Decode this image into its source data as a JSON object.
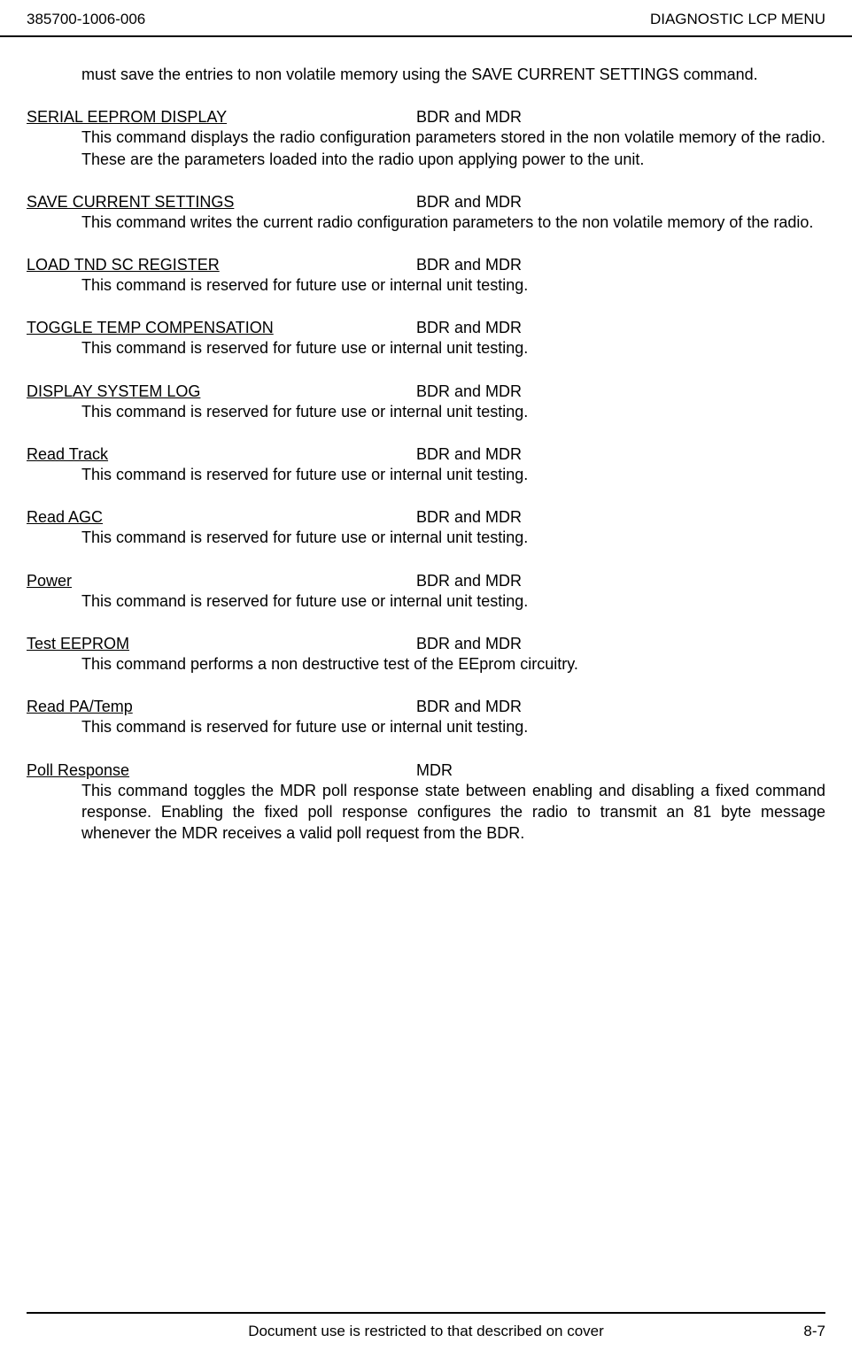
{
  "header": {
    "doc_number": "385700-1006-006",
    "doc_title": "DIAGNOSTIC LCP MENU"
  },
  "intro_text": "must save the entries to non volatile memory using the SAVE CURRENT SETTINGS command.",
  "sections": [
    {
      "title": "SERIAL EEPROM DISPLAY",
      "applies": "BDR and MDR",
      "body": "This command displays the radio configuration parameters stored in the non volatile memory of the radio.  These are the parameters loaded into the radio upon applying power to the unit."
    },
    {
      "title": "SAVE CURRENT SETTINGS",
      "applies": "BDR and MDR",
      "body": "This command writes the current radio configuration parameters to the non volatile memory of the radio."
    },
    {
      "title": "LOAD TND SC REGISTER",
      "applies": "BDR and MDR",
      "body": "This command is reserved for future use or internal unit testing."
    },
    {
      "title": "TOGGLE TEMP COMPENSATION",
      "applies": "BDR and MDR",
      "body": "This command is reserved for future use or internal unit testing."
    },
    {
      "title": "DISPLAY SYSTEM LOG",
      "applies": "BDR and MDR",
      "body": "This command is reserved for future use or internal unit testing."
    },
    {
      "title": "Read Track",
      "applies": "BDR and MDR",
      "body": "This command is reserved for future use or internal unit testing."
    },
    {
      "title": "Read AGC",
      "applies": "BDR and MDR",
      "body": "This command is reserved for future use or internal unit testing."
    },
    {
      "title": "Power",
      "applies": "BDR and MDR",
      "body": "This command is reserved for future use or internal unit testing."
    },
    {
      "title": "Test EEPROM",
      "applies": "BDR and MDR",
      "body": "This command performs a non destructive test of the EEprom circuitry."
    },
    {
      "title": "Read PA/Temp",
      "applies": "BDR and MDR",
      "body": "This command is reserved for future use or internal unit testing."
    },
    {
      "title": "Poll Response",
      "applies": "MDR",
      "body": "This command toggles the MDR poll response state between enabling and disabling a fixed command response.  Enabling the fixed poll response configures the radio to transmit an 81 byte message whenever the MDR receives a valid poll request from the BDR."
    }
  ],
  "footer": {
    "restriction": "Document use is restricted to that described on cover",
    "page_number": "8-7"
  }
}
